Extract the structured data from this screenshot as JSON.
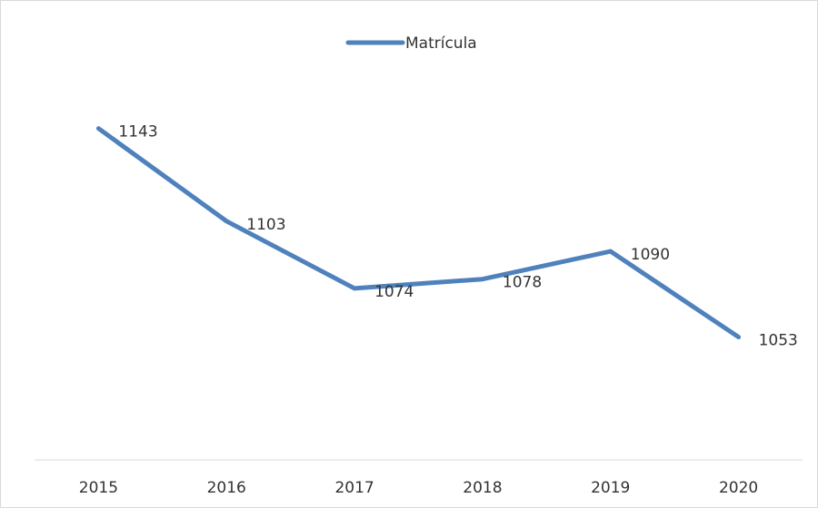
{
  "chart_data": {
    "type": "line",
    "categories": [
      "2015",
      "2016",
      "2017",
      "2018",
      "2019",
      "2020"
    ],
    "series": [
      {
        "name": "Matrícula",
        "color": "#4f81bd",
        "values": [
          1143,
          1103,
          1074,
          1078,
          1090,
          1053
        ]
      }
    ],
    "ylim": [
      1000,
      1200
    ],
    "legend": "top"
  }
}
